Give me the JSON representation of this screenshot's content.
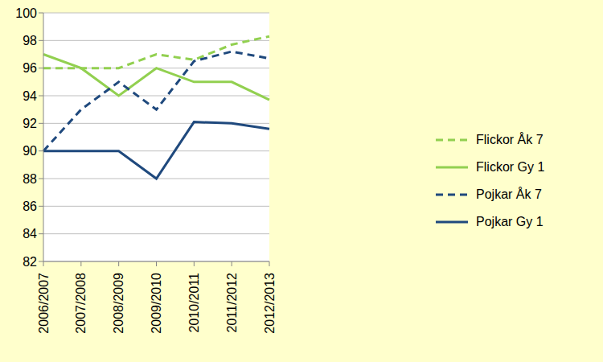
{
  "chart_data": {
    "type": "line",
    "categories": [
      "2006/2007",
      "2007/2008",
      "2008/2009",
      "2009/2010",
      "2010/2011",
      "2011/2012",
      "2012/2013"
    ],
    "series": [
      {
        "name": "Flickor Åk 7",
        "color": "#92d050",
        "line_style": "dashed",
        "values": [
          96,
          96,
          96,
          97,
          96.6,
          97.7,
          98.3
        ]
      },
      {
        "name": "Flickor Gy 1",
        "color": "#92d050",
        "line_style": "solid",
        "values": [
          97,
          96,
          94,
          96,
          95,
          95,
          93.7
        ]
      },
      {
        "name": "Pojkar Åk 7",
        "color": "#1f497d",
        "line_style": "dashed",
        "values": [
          90,
          93,
          95,
          93,
          96.5,
          97.2,
          96.7
        ]
      },
      {
        "name": "Pojkar Gy 1",
        "color": "#1f497d",
        "line_style": "solid",
        "values": [
          90,
          90,
          90,
          88,
          92.1,
          92,
          91.6
        ]
      }
    ],
    "ylim": [
      82,
      100
    ],
    "yticks": [
      82,
      84,
      86,
      88,
      90,
      92,
      94,
      96,
      98,
      100
    ],
    "grid": true,
    "legend": "right"
  }
}
